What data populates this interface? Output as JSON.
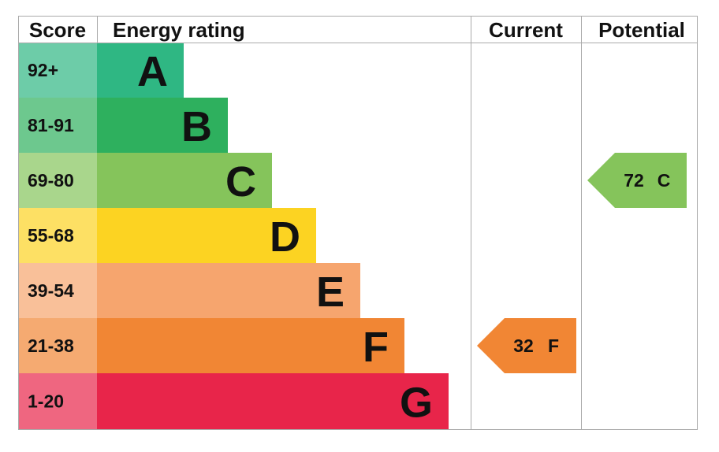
{
  "header": {
    "score": "Score",
    "rating": "Energy rating",
    "current": "Current",
    "potential": "Potential"
  },
  "bands": [
    {
      "score": "92+",
      "letter": "A",
      "color": "#2fb783"
    },
    {
      "score": "81-91",
      "letter": "B",
      "color": "#2eb05e"
    },
    {
      "score": "69-80",
      "letter": "C",
      "color": "#85c45b"
    },
    {
      "score": "55-68",
      "letter": "D",
      "color": "#fcd322"
    },
    {
      "score": "39-54",
      "letter": "E",
      "color": "#f6a56e"
    },
    {
      "score": "21-38",
      "letter": "F",
      "color": "#f18634"
    },
    {
      "score": "1-20",
      "letter": "G",
      "color": "#e8254a"
    }
  ],
  "current": {
    "value": 32,
    "letter": "F"
  },
  "potential": {
    "value": 72,
    "letter": "C"
  }
}
